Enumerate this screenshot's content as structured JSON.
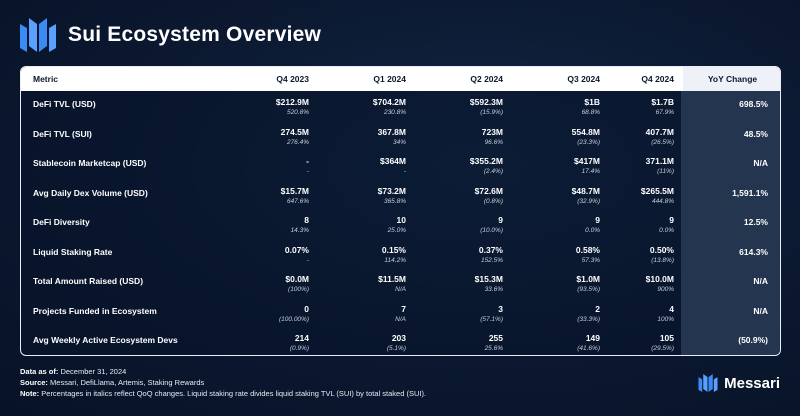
{
  "header": {
    "title": "Sui Ecosystem Overview"
  },
  "colors": {
    "accent": "#3b8bf5",
    "background": "#0b1830",
    "yoy_column": "#24354f"
  },
  "table": {
    "columns": [
      "Metric",
      "Q4 2023",
      "Q1 2024",
      "Q2 2024",
      "Q3 2024",
      "Q4 2024",
      "YoY Change"
    ],
    "rows": [
      {
        "metric": "DeFi TVL (USD)",
        "values": [
          "$212.9M",
          "$704.2M",
          "$592.3M",
          "$1B",
          "$1.7B"
        ],
        "qoq": [
          "520.8%",
          "230.8%",
          "(15.9%)",
          "68.8%",
          "67.9%"
        ],
        "yoy": "698.5%"
      },
      {
        "metric": "DeFi TVL (SUI)",
        "values": [
          "274.5M",
          "367.8M",
          "723M",
          "554.8M",
          "407.7M"
        ],
        "qoq": [
          "276.4%",
          "34%",
          "96.6%",
          "(23.3%)",
          "(26.5%)"
        ],
        "yoy": "48.5%"
      },
      {
        "metric": "Stablecoin Marketcap (USD)",
        "values": [
          "-",
          "$364M",
          "$355.2M",
          "$417M",
          "371.1M"
        ],
        "qoq": [
          "-",
          "-",
          "(2.4%)",
          "17.4%",
          "(11%)"
        ],
        "yoy": "N/A"
      },
      {
        "metric": "Avg Daily Dex Volume (USD)",
        "values": [
          "$15.7M",
          "$73.2M",
          "$72.6M",
          "$48.7M",
          "$265.5M"
        ],
        "qoq": [
          "647.6%",
          "365.8%",
          "(0.8%)",
          "(32.9%)",
          "444.8%"
        ],
        "yoy": "1,591.1%"
      },
      {
        "metric": "DeFi Diversity",
        "values": [
          "8",
          "10",
          "9",
          "9",
          "9"
        ],
        "qoq": [
          "14.3%",
          "25.0%",
          "(10.0%)",
          "0.0%",
          "0.0%"
        ],
        "yoy": "12.5%"
      },
      {
        "metric": "Liquid Staking Rate",
        "values": [
          "0.07%",
          "0.15%",
          "0.37%",
          "0.58%",
          "0.50%"
        ],
        "qoq": [
          "-",
          "114.2%",
          "152.5%",
          "57.3%",
          "(13.8%)"
        ],
        "yoy": "614.3%"
      },
      {
        "metric": "Total Amount Raised (USD)",
        "values": [
          "$0.0M",
          "$11.5M",
          "$15.3M",
          "$1.0M",
          "$10.0M"
        ],
        "qoq": [
          "(100%)",
          "N/A",
          "33.6%",
          "(93.5%)",
          "900%"
        ],
        "yoy": "N/A"
      },
      {
        "metric": "Projects Funded in Ecosystem",
        "values": [
          "0",
          "7",
          "3",
          "2",
          "4"
        ],
        "qoq": [
          "(100.00%)",
          "N/A",
          "(57.1%)",
          "(33.3%)",
          "100%"
        ],
        "yoy": "N/A"
      },
      {
        "metric": "Avg Weekly Active Ecosystem Devs",
        "values": [
          "214",
          "203",
          "255",
          "149",
          "105"
        ],
        "qoq": [
          "(0.9%)",
          "(5.1%)",
          "25.6%",
          "(41.6%)",
          "(29.5%)"
        ],
        "yoy": "(50.9%)"
      }
    ]
  },
  "footer": {
    "data_as_of_label": "Data as of:",
    "data_as_of": "December 31, 2024",
    "source_label": "Source:",
    "source": "Messari, DefiLlama, Artemis, Staking Rewards",
    "note_label": "Note:",
    "note": "Percentages in italics reflect QoQ changes. Liquid staking rate divides liquid staking TVL (SUI) by total staked (SUI)."
  },
  "brand": {
    "name": "Messari",
    "icon": "messari-logo-icon"
  }
}
